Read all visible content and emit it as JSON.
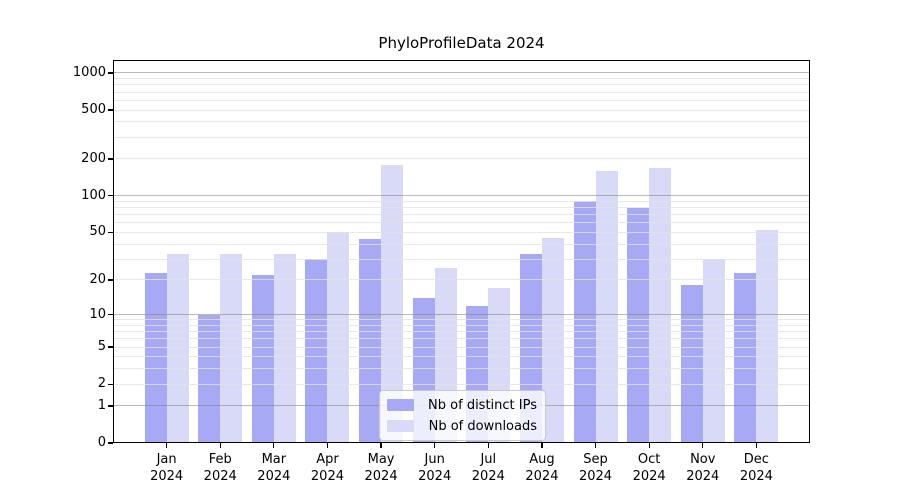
{
  "title": "PhyloProfileData 2024",
  "colors": {
    "distinct_ips": "#a7a9f4",
    "downloads": "#d8daf8"
  },
  "legend": {
    "items": [
      {
        "label": "Nb of distinct IPs"
      },
      {
        "label": "Nb of downloads"
      }
    ]
  },
  "chart_data": {
    "type": "bar",
    "title": "PhyloProfileData 2024",
    "categories": [
      "Jan",
      "Feb",
      "Mar",
      "Apr",
      "May",
      "Jun",
      "Jul",
      "Aug",
      "Sep",
      "Oct",
      "Nov",
      "Dec"
    ],
    "category_sublabel": "2024",
    "series": [
      {
        "name": "Nb of distinct IPs",
        "color": "#a7a9f4",
        "values": [
          23,
          10,
          22,
          30,
          44,
          14,
          12,
          33,
          90,
          80,
          18,
          23
        ]
      },
      {
        "name": "Nb of downloads",
        "color": "#d8daf8",
        "values": [
          33,
          33,
          33,
          50,
          178,
          25,
          17,
          45,
          158,
          168,
          30,
          52
        ]
      }
    ],
    "xlabel": "",
    "ylabel": "",
    "yscale": "log1p",
    "yticks": [
      0,
      1,
      2,
      5,
      10,
      20,
      50,
      100,
      200,
      500,
      1000
    ],
    "ylim": [
      0,
      1270
    ],
    "grid": true,
    "grid_major_at": [
      1,
      10,
      100,
      1000
    ],
    "legend_position": "lower center inside"
  }
}
